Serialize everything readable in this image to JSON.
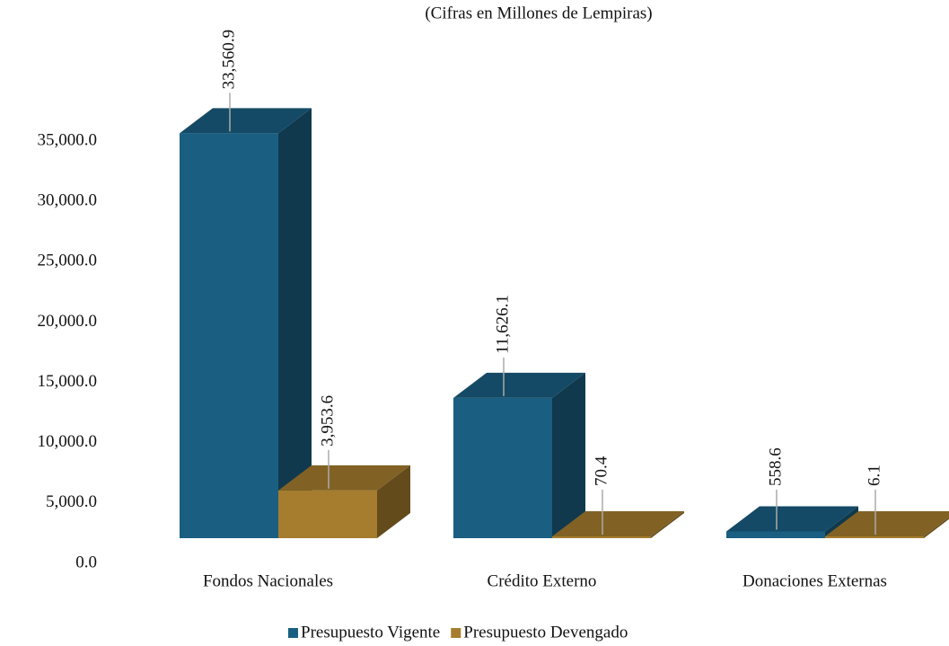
{
  "chart_data": {
    "type": "bar3d",
    "subtitle": "(Cifras en Millones de Lempiras)",
    "categories": [
      "Fondos Nacionales",
      "Crédito Externo",
      "Donaciones Externas"
    ],
    "series": [
      {
        "name": "Presupuesto Vigente",
        "color": "#1a5f82",
        "values": [
          33560.9,
          11626.1,
          558.6
        ],
        "value_labels": [
          "33,560.9",
          "11,626.1",
          "558.6"
        ]
      },
      {
        "name": "Presupuesto Devengado",
        "color": "#a67d2e",
        "values": [
          3953.6,
          70.4,
          6.1
        ],
        "value_labels": [
          "3,953.6",
          "70.4",
          "6.1"
        ]
      }
    ],
    "ylim": [
      0,
      35000
    ],
    "yticks": [
      {
        "value": 0,
        "label": "0.0"
      },
      {
        "value": 5000,
        "label": "5,000.0"
      },
      {
        "value": 10000,
        "label": "10,000.0"
      },
      {
        "value": 15000,
        "label": "15,000.0"
      },
      {
        "value": 20000,
        "label": "20,000.0"
      },
      {
        "value": 25000,
        "label": "25,000.0"
      },
      {
        "value": 30000,
        "label": "30,000.0"
      },
      {
        "value": 35000,
        "label": "35,000.0"
      }
    ],
    "legend": "bottom"
  }
}
